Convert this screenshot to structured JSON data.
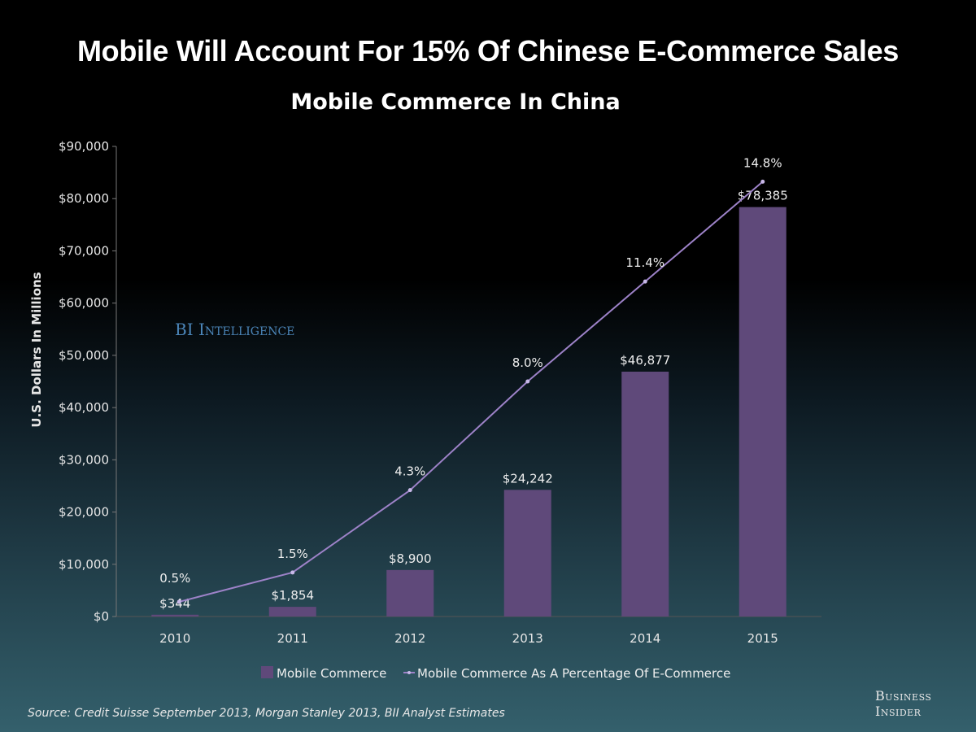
{
  "headline": "Mobile Will Account For 15% Of Chinese E-Commerce Sales",
  "watermark": "BI Intelligence",
  "source": "Source: Credit Suisse September 2013, Morgan Stanley 2013, BII Analyst Estimates",
  "logo": {
    "line1": "Business",
    "line2": "Insider"
  },
  "colors": {
    "bar": "#5f497a",
    "line": "#9d82c8"
  },
  "chart_data": {
    "type": "bar",
    "title": "Mobile Commerce In China",
    "ylabel": "U.S. Dollars In Millions",
    "xlabel": "",
    "ylim": [
      0,
      90000
    ],
    "y2lim": [
      0,
      16
    ],
    "yticks": [
      "$0",
      "$10,000",
      "$20,000",
      "$30,000",
      "$40,000",
      "$50,000",
      "$60,000",
      "$70,000",
      "$80,000",
      "$90,000"
    ],
    "categories": [
      "2010",
      "2011",
      "2012",
      "2013",
      "2014",
      "2015"
    ],
    "series": [
      {
        "name": "Mobile Commerce",
        "type": "bar",
        "values": [
          344,
          1854,
          8900,
          24242,
          46877,
          78385
        ],
        "labels": [
          "$344",
          "$1,854",
          "$8,900",
          "$24,242",
          "$46,877",
          "$78,385"
        ]
      },
      {
        "name": "Mobile Commerce As A Percentage Of E-Commerce",
        "type": "line",
        "axis": "secondary",
        "values": [
          0.5,
          1.5,
          4.3,
          8.0,
          11.4,
          14.8
        ],
        "labels": [
          "0.5%",
          "1.5%",
          "4.3%",
          "8.0%",
          "11.4%",
          "14.8%"
        ]
      }
    ],
    "legend": "bottom",
    "grid": false
  }
}
